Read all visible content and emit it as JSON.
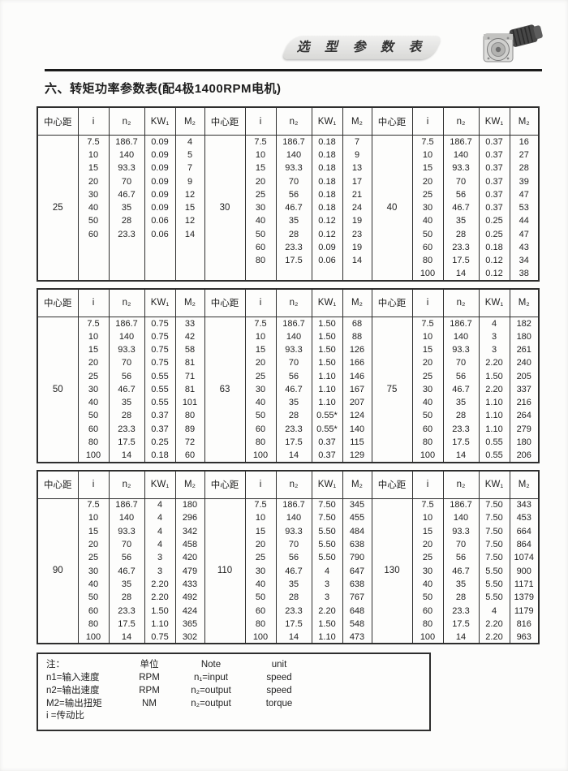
{
  "banner": {
    "title": "选 型 参 数 表"
  },
  "page_title": "六、转矩功率参数表(配4极1400RPM电机)",
  "table_headers": [
    "中心距",
    "i",
    "n₂",
    "KW₁",
    "M₂"
  ],
  "tables": [
    {
      "sections": [
        {
          "center_distance": "25",
          "rows": [
            [
              "7.5",
              "186.7",
              "0.09",
              "4"
            ],
            [
              "10",
              "140",
              "0.09",
              "5"
            ],
            [
              "15",
              "93.3",
              "0.09",
              "7"
            ],
            [
              "20",
              "70",
              "0.09",
              "9"
            ],
            [
              "30",
              "46.7",
              "0.09",
              "12"
            ],
            [
              "40",
              "35",
              "0.09",
              "15"
            ],
            [
              "50",
              "28",
              "0.06",
              "12"
            ],
            [
              "60",
              "23.3",
              "0.06",
              "14"
            ]
          ]
        },
        {
          "center_distance": "30",
          "rows": [
            [
              "7.5",
              "186.7",
              "0.18",
              "7"
            ],
            [
              "10",
              "140",
              "0.18",
              "9"
            ],
            [
              "15",
              "93.3",
              "0.18",
              "13"
            ],
            [
              "20",
              "70",
              "0.18",
              "17"
            ],
            [
              "25",
              "56",
              "0.18",
              "21"
            ],
            [
              "30",
              "46.7",
              "0.18",
              "24"
            ],
            [
              "40",
              "35",
              "0.12",
              "19"
            ],
            [
              "50",
              "28",
              "0.12",
              "23"
            ],
            [
              "60",
              "23.3",
              "0.09",
              "19"
            ],
            [
              "80",
              "17.5",
              "0.06",
              "14"
            ]
          ]
        },
        {
          "center_distance": "40",
          "rows": [
            [
              "7.5",
              "186.7",
              "0.37",
              "16"
            ],
            [
              "10",
              "140",
              "0.37",
              "27"
            ],
            [
              "15",
              "93.3",
              "0.37",
              "28"
            ],
            [
              "20",
              "70",
              "0.37",
              "39"
            ],
            [
              "25",
              "56",
              "0.37",
              "47"
            ],
            [
              "30",
              "46.7",
              "0.37",
              "53"
            ],
            [
              "40",
              "35",
              "0.25",
              "44"
            ],
            [
              "50",
              "28",
              "0.25",
              "47"
            ],
            [
              "60",
              "23.3",
              "0.18",
              "43"
            ],
            [
              "80",
              "17.5",
              "0.12",
              "34"
            ],
            [
              "100",
              "14",
              "0.12",
              "38"
            ]
          ]
        }
      ]
    },
    {
      "sections": [
        {
          "center_distance": "50",
          "rows": [
            [
              "7.5",
              "186.7",
              "0.75",
              "33"
            ],
            [
              "10",
              "140",
              "0.75",
              "42"
            ],
            [
              "15",
              "93.3",
              "0.75",
              "58"
            ],
            [
              "20",
              "70",
              "0.75",
              "81"
            ],
            [
              "25",
              "56",
              "0.55",
              "71"
            ],
            [
              "30",
              "46.7",
              "0.55",
              "81"
            ],
            [
              "40",
              "35",
              "0.55",
              "101"
            ],
            [
              "50",
              "28",
              "0.37",
              "80"
            ],
            [
              "60",
              "23.3",
              "0.37",
              "89"
            ],
            [
              "80",
              "17.5",
              "0.25",
              "72"
            ],
            [
              "100",
              "14",
              "0.18",
              "60"
            ]
          ]
        },
        {
          "center_distance": "63",
          "rows": [
            [
              "7.5",
              "186.7",
              "1.50",
              "68"
            ],
            [
              "10",
              "140",
              "1.50",
              "88"
            ],
            [
              "15",
              "93.3",
              "1.50",
              "126"
            ],
            [
              "20",
              "70",
              "1.50",
              "166"
            ],
            [
              "25",
              "56",
              "1.10",
              "146"
            ],
            [
              "30",
              "46.7",
              "1.10",
              "167"
            ],
            [
              "40",
              "35",
              "1.10",
              "207"
            ],
            [
              "50",
              "28",
              "0.55*",
              "124"
            ],
            [
              "60",
              "23.3",
              "0.55*",
              "140"
            ],
            [
              "80",
              "17.5",
              "0.37",
              "115"
            ],
            [
              "100",
              "14",
              "0.37",
              "129"
            ]
          ]
        },
        {
          "center_distance": "75",
          "rows": [
            [
              "7.5",
              "186.7",
              "4",
              "182"
            ],
            [
              "10",
              "140",
              "3",
              "180"
            ],
            [
              "15",
              "93.3",
              "3",
              "261"
            ],
            [
              "20",
              "70",
              "2.20",
              "240"
            ],
            [
              "25",
              "56",
              "1.50",
              "205"
            ],
            [
              "30",
              "46.7",
              "2.20",
              "337"
            ],
            [
              "40",
              "35",
              "1.10",
              "216"
            ],
            [
              "50",
              "28",
              "1.10",
              "264"
            ],
            [
              "60",
              "23.3",
              "1.10",
              "279"
            ],
            [
              "80",
              "17.5",
              "0.55",
              "180"
            ],
            [
              "100",
              "14",
              "0.55",
              "206"
            ]
          ]
        }
      ]
    },
    {
      "sections": [
        {
          "center_distance": "90",
          "rows": [
            [
              "7.5",
              "186.7",
              "4",
              "180"
            ],
            [
              "10",
              "140",
              "4",
              "296"
            ],
            [
              "15",
              "93.3",
              "4",
              "342"
            ],
            [
              "20",
              "70",
              "4",
              "458"
            ],
            [
              "25",
              "56",
              "3",
              "420"
            ],
            [
              "30",
              "46.7",
              "3",
              "479"
            ],
            [
              "40",
              "35",
              "2.20",
              "433"
            ],
            [
              "50",
              "28",
              "2.20",
              "492"
            ],
            [
              "60",
              "23.3",
              "1.50",
              "424"
            ],
            [
              "80",
              "17.5",
              "1.10",
              "365"
            ],
            [
              "100",
              "14",
              "0.75",
              "302"
            ]
          ]
        },
        {
          "center_distance": "110",
          "rows": [
            [
              "7.5",
              "186.7",
              "7.50",
              "345"
            ],
            [
              "10",
              "140",
              "7.50",
              "455"
            ],
            [
              "15",
              "93.3",
              "5.50",
              "484"
            ],
            [
              "20",
              "70",
              "5.50",
              "638"
            ],
            [
              "25",
              "56",
              "5.50",
              "790"
            ],
            [
              "30",
              "46.7",
              "4",
              "647"
            ],
            [
              "40",
              "35",
              "3",
              "638"
            ],
            [
              "50",
              "28",
              "3",
              "767"
            ],
            [
              "60",
              "23.3",
              "2.20",
              "648"
            ],
            [
              "80",
              "17.5",
              "1.50",
              "548"
            ],
            [
              "100",
              "14",
              "1.10",
              "473"
            ]
          ]
        },
        {
          "center_distance": "130",
          "rows": [
            [
              "7.5",
              "186.7",
              "7.50",
              "343"
            ],
            [
              "10",
              "140",
              "7.50",
              "453"
            ],
            [
              "15",
              "93.3",
              "7.50",
              "664"
            ],
            [
              "20",
              "70",
              "7.50",
              "864"
            ],
            [
              "25",
              "56",
              "7.50",
              "1074"
            ],
            [
              "30",
              "46.7",
              "5.50",
              "900"
            ],
            [
              "40",
              "35",
              "5.50",
              "1171"
            ],
            [
              "50",
              "28",
              "5.50",
              "1379"
            ],
            [
              "60",
              "23.3",
              "4",
              "1179"
            ],
            [
              "80",
              "17.5",
              "2.20",
              "816"
            ],
            [
              "100",
              "14",
              "2.20",
              "963"
            ]
          ]
        }
      ]
    }
  ],
  "notes": {
    "rows": [
      [
        "注：",
        "单位",
        "Note",
        "unit"
      ],
      [
        "n1=输入速度",
        "RPM",
        "n₁=input",
        "speed"
      ],
      [
        "n2=输出速度",
        "RPM",
        "n₂=output",
        "speed"
      ],
      [
        "M2=输出扭矩",
        "NM",
        "n₂=output",
        "torque"
      ],
      [
        "i =传动比",
        "",
        "",
        ""
      ]
    ]
  },
  "icons": {
    "motor": "worm-gearmotor-photo"
  },
  "colors": {
    "border": "#2e2e2e",
    "banner_fill": "#e0e0de",
    "text": "#1e1e1e"
  }
}
